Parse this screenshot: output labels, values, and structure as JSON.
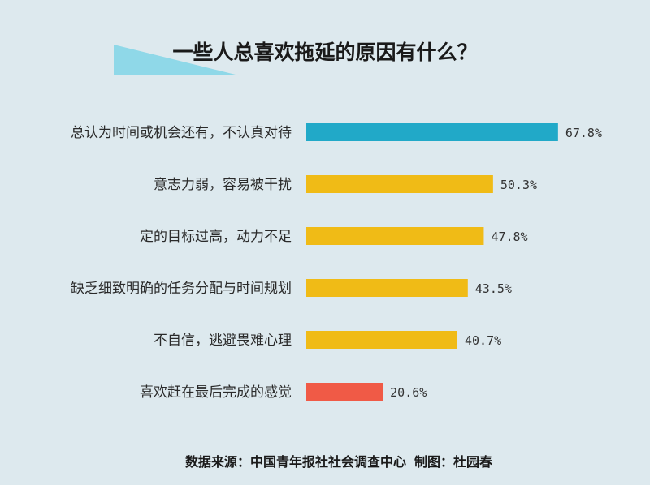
{
  "chart_data": {
    "type": "bar",
    "orientation": "horizontal",
    "title": "一些人总喜欢拖延的原因有什么？",
    "categories": [
      "总认为时间或机会还有，不认真对待",
      "意志力弱，容易被干扰",
      "定的目标过高，动力不足",
      "缺乏细致明确的任务分配与时间规划",
      "不自信，逃避畏难心理",
      "喜欢赶在最后完成的感觉"
    ],
    "values": [
      67.8,
      50.3,
      47.8,
      43.5,
      40.7,
      20.6
    ],
    "value_labels": [
      "67.8%",
      "50.3%",
      "47.8%",
      "43.5%",
      "40.7%",
      "20.6%"
    ],
    "unit": "%",
    "xlim": [
      0,
      100
    ],
    "grid": false,
    "legend": "none"
  },
  "colors": {
    "background": "#dde9ee",
    "bars": [
      "#21a9c8",
      "#f0bb16",
      "#f0bb16",
      "#f0bb16",
      "#f0bb16",
      "#f05a46"
    ],
    "title_accent": "#8fd8e8"
  },
  "footer": {
    "source": "数据来源：中国青年报社社会调查中心",
    "credit": "制图：杜园春"
  }
}
